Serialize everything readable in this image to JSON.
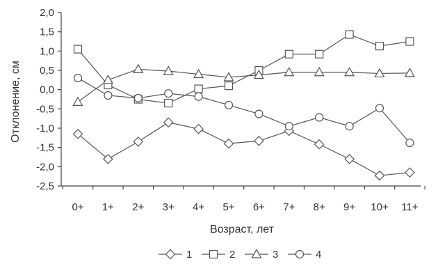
{
  "chart_data": {
    "type": "line",
    "title": "",
    "xlabel": "Возраст, лет",
    "ylabel": "Отклонение, см",
    "categories": [
      "0+",
      "1+",
      "2+",
      "3+",
      "4+",
      "5+",
      "6+",
      "7+",
      "8+",
      "9+",
      "10+",
      "11+"
    ],
    "ylim": [
      -2.5,
      2.0
    ],
    "yticks": [
      "2,0",
      "1,5",
      "1,0",
      "0,5",
      "0,0",
      "-0,5",
      "-1,0",
      "-1,5",
      "-2,0",
      "-2,5"
    ],
    "ytick_values": [
      2.0,
      1.5,
      1.0,
      0.5,
      0.0,
      -0.5,
      -1.0,
      -1.5,
      -2.0,
      -2.5
    ],
    "grid": false,
    "legend_position": "bottom",
    "series": [
      {
        "name": "1",
        "marker": "diamond",
        "values": [
          -1.15,
          -1.8,
          -1.35,
          -0.85,
          -1.02,
          -1.4,
          -1.33,
          -1.07,
          -1.42,
          -1.8,
          -2.23,
          -2.15
        ]
      },
      {
        "name": "2",
        "marker": "square",
        "values": [
          1.05,
          0.12,
          -0.25,
          -0.35,
          0.02,
          0.1,
          0.5,
          0.92,
          0.92,
          1.43,
          1.13,
          1.25
        ]
      },
      {
        "name": "3",
        "marker": "triangle",
        "values": [
          -0.32,
          0.25,
          0.53,
          0.48,
          0.4,
          0.32,
          0.38,
          0.45,
          0.45,
          0.45,
          0.42,
          0.43
        ]
      },
      {
        "name": "4",
        "marker": "circle",
        "values": [
          0.3,
          -0.15,
          -0.22,
          -0.1,
          -0.18,
          -0.4,
          -0.63,
          -0.95,
          -0.72,
          -0.95,
          -0.48,
          -1.38
        ]
      }
    ]
  }
}
